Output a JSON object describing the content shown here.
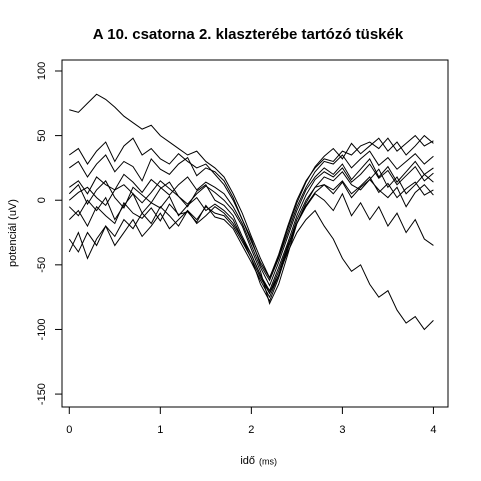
{
  "chart_data": {
    "type": "line",
    "title": "A 10. csatorna 2. klaszterébe tartózó tüskék",
    "x_label": "idő",
    "x_unit": "(ms)",
    "y_label": "potenciál (uV)",
    "xlim": [
      -0.08,
      4.16
    ],
    "ylim": [
      -160,
      108.5
    ],
    "xticks": [
      0,
      1,
      2,
      3,
      4
    ],
    "yticks": [
      -150,
      -100,
      -50,
      0,
      50,
      100
    ],
    "x": [
      0,
      0.1,
      0.2,
      0.3,
      0.4,
      0.5,
      0.6,
      0.7,
      0.8,
      0.9,
      1,
      1.1,
      1.2,
      1.3,
      1.4,
      1.5,
      1.6,
      1.7,
      1.8,
      1.9,
      2,
      2.1,
      2.2,
      2.3,
      2.4,
      2.5,
      2.6,
      2.7,
      2.8,
      2.9,
      3,
      3.1,
      3.2,
      3.3,
      3.4,
      3.5,
      3.6,
      3.7,
      3.8,
      3.9,
      4
    ],
    "series": [
      {
        "color": "#000000",
        "values": [
          5,
          12,
          -3,
          8,
          15,
          2,
          -6,
          10,
          4,
          -2,
          9,
          14,
          3,
          -5,
          7,
          12,
          0,
          -4,
          -12,
          -28,
          -42,
          -58,
          -70,
          -52,
          -33,
          -12,
          4,
          16,
          22,
          18,
          25,
          14,
          20,
          28,
          17,
          23,
          12,
          19,
          26,
          15,
          21
        ]
      },
      {
        "color": "#000000",
        "values": [
          -15,
          -8,
          -20,
          -5,
          -12,
          -18,
          -2,
          -10,
          -14,
          -6,
          -16,
          -3,
          -11,
          -9,
          -17,
          -4,
          -13,
          -15,
          -22,
          -35,
          -48,
          -62,
          -75,
          -58,
          -36,
          -15,
          0,
          10,
          12,
          8,
          15,
          5,
          11,
          18,
          6,
          13,
          2,
          9,
          14,
          4,
          8
        ]
      },
      {
        "color": "#000000",
        "values": [
          25,
          30,
          18,
          28,
          35,
          22,
          30,
          26,
          15,
          32,
          24,
          20,
          28,
          33,
          19,
          25,
          22,
          15,
          2,
          -15,
          -30,
          -50,
          -62,
          -45,
          -25,
          -5,
          10,
          22,
          30,
          28,
          35,
          25,
          32,
          38,
          27,
          33,
          24,
          30,
          36,
          28,
          34
        ]
      },
      {
        "color": "#000000",
        "values": [
          70,
          68,
          75,
          82,
          78,
          72,
          65,
          60,
          55,
          58,
          50,
          45,
          40,
          35,
          38,
          30,
          25,
          18,
          5,
          -10,
          -28,
          -45,
          -60,
          -42,
          -20,
          0,
          15,
          25,
          32,
          30,
          38,
          35,
          42,
          45,
          40,
          48,
          38,
          44,
          50,
          42,
          46
        ]
      },
      {
        "color": "#000000",
        "values": [
          -30,
          -40,
          -25,
          -35,
          -20,
          -28,
          -15,
          -22,
          -10,
          -18,
          -5,
          -12,
          -20,
          -8,
          -15,
          -5,
          -10,
          -12,
          -20,
          -32,
          -45,
          -60,
          -72,
          -58,
          -40,
          -25,
          -15,
          -8,
          -20,
          -30,
          -45,
          -55,
          -50,
          -65,
          -75,
          -70,
          -85,
          -95,
          -90,
          -100,
          -93
        ]
      },
      {
        "color": "#000000",
        "values": [
          0,
          6,
          10,
          2,
          -4,
          8,
          12,
          5,
          -2,
          6,
          15,
          9,
          3,
          -3,
          5,
          11,
          6,
          0,
          -8,
          -20,
          -38,
          -55,
          -80,
          -65,
          -42,
          -18,
          -2,
          10,
          18,
          15,
          22,
          12,
          8,
          16,
          24,
          10,
          18,
          5,
          12,
          20,
          14
        ]
      },
      {
        "color": "#000000",
        "values": [
          10,
          15,
          5,
          18,
          12,
          8,
          20,
          14,
          6,
          16,
          10,
          4,
          12,
          18,
          8,
          14,
          10,
          5,
          -5,
          -18,
          -35,
          -52,
          -66,
          -48,
          -28,
          -8,
          8,
          18,
          25,
          20,
          28,
          16,
          24,
          32,
          18,
          26,
          14,
          22,
          30,
          20,
          25
        ]
      },
      {
        "color": "#000000",
        "values": [
          -5,
          -12,
          0,
          -8,
          2,
          -15,
          -4,
          5,
          -10,
          -2,
          -6,
          3,
          -12,
          -4,
          2,
          -8,
          -3,
          -8,
          -15,
          -30,
          -45,
          -65,
          -78,
          -60,
          -38,
          -18,
          -4,
          6,
          12,
          5,
          14,
          2,
          10,
          16,
          8,
          2,
          10,
          -5,
          6,
          12,
          4
        ]
      },
      {
        "color": "#000000",
        "values": [
          35,
          40,
          28,
          38,
          45,
          30,
          42,
          48,
          35,
          40,
          32,
          28,
          36,
          30,
          25,
          28,
          20,
          12,
          0,
          -15,
          -32,
          -48,
          -60,
          -44,
          -22,
          -2,
          14,
          26,
          34,
          40,
          32,
          44,
          36,
          42,
          48,
          38,
          45,
          35,
          42,
          50,
          44
        ]
      },
      {
        "color": "#000000",
        "values": [
          -40,
          -25,
          -45,
          -30,
          -20,
          -35,
          -25,
          -15,
          -28,
          -20,
          -10,
          -22,
          -15,
          -8,
          -18,
          -12,
          -5,
          -10,
          -18,
          -30,
          -42,
          -58,
          -72,
          -55,
          -35,
          -18,
          -5,
          5,
          0,
          -8,
          5,
          -12,
          -2,
          -15,
          -5,
          -20,
          -10,
          -25,
          -15,
          -30,
          -35
        ]
      }
    ]
  }
}
